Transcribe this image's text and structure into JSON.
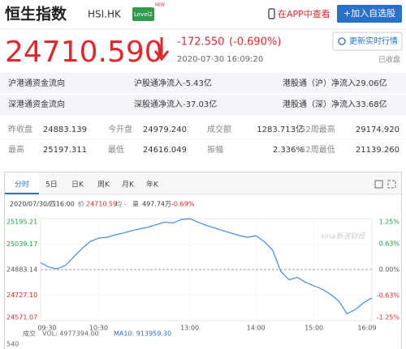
{
  "header": {
    "title": "恒生指数",
    "code": "HSI.HK",
    "badge": "Level2",
    "badge_new": "NEW",
    "app_link": "在APP中查看",
    "add_button": "+加入自选股"
  },
  "quote": {
    "price": "24710.590",
    "change": "-172.550",
    "change_pct": "(-0.690%)",
    "time": "2020-07-30 16:09:20",
    "refresh": "更新实时行情",
    "status": "已收盘"
  },
  "flows": [
    [
      "沪港通资金流向",
      "沪股通净流入-5.43亿",
      "港股通（沪）净流入29.06亿"
    ],
    [
      "深港通资金流向",
      "深股通净流入-37.03亿",
      "港股通（深）净流入33.68亿"
    ]
  ],
  "stats": [
    [
      "昨收盘",
      "24883.139",
      "今开盘",
      "24979.240",
      "成交额",
      "1283.713亿",
      "52周最高",
      "29174.920"
    ],
    [
      "最高",
      "25197.311",
      "最低",
      "24616.049",
      "振幅",
      "2.336%",
      "52周最低",
      "21139.260"
    ]
  ],
  "tabs": [
    "分时",
    "5日",
    "日K",
    "周K",
    "月K",
    "年K"
  ],
  "chart_info": {
    "date": "2020/07/30/四16:00",
    "price_label": "价",
    "price": "24710.59",
    "avg_label": "均",
    "avg": "-",
    "vol_label": "量",
    "vol": "497.74万",
    "pct": "-0.69%"
  },
  "chart_data": {
    "type": "line",
    "color": "#3c8dde",
    "up_color": "#1e9b3c",
    "down_color": "#e4262a",
    "categories": [
      "09:30",
      null,
      null,
      null,
      null,
      null,
      null,
      "10:30",
      null,
      null,
      null,
      null,
      null,
      null,
      null,
      null,
      null,
      null,
      "13:00",
      null,
      null,
      null,
      null,
      null,
      null,
      null,
      "14:00",
      null,
      null,
      null,
      null,
      null,
      null,
      "15:00",
      null,
      null,
      null,
      null,
      null,
      null,
      "16:09"
    ],
    "values": [
      24925,
      24899,
      24888,
      24909,
      24961,
      25013,
      25055,
      25076,
      25081,
      25096,
      25107,
      25122,
      25133,
      25143,
      25159,
      25174,
      25169,
      25190,
      25195,
      25174,
      25154,
      25138,
      25122,
      25107,
      25091,
      25081,
      25091,
      25055,
      25003,
      24873,
      24821,
      24836,
      24805,
      24784,
      24764,
      24732,
      24691,
      24613,
      24639,
      24680,
      24711
    ],
    "ylim": [
      24571.07,
      25195.21
    ],
    "yticks": [
      25195.21,
      25039.17,
      24883.14,
      {
        "value": 24727.1,
        "label": "24727.10"
      },
      24571.07
    ],
    "y2lim": [
      -1.25,
      1.25
    ],
    "y2ticks": [
      {
        "value": 1.25,
        "label": "1.25%"
      },
      {
        "value": 0.63,
        "label": "0.63%"
      },
      {
        "value": 0,
        "label": "0.00%"
      },
      {
        "value": -0.63,
        "label": "-0.63%"
      },
      {
        "value": -1.25,
        "label": "-1.25%"
      }
    ],
    "grid": true
  },
  "volume": {
    "label": "成交",
    "vol": "VOL: 4977394.00",
    "ma10": "MA10: 913959.30",
    "axis_max": "540"
  },
  "watermark": "sina新浪财经"
}
